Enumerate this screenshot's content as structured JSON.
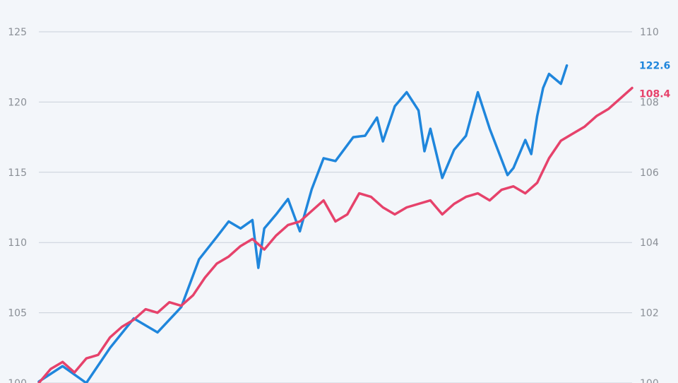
{
  "chart_data": {
    "type": "line",
    "title": "",
    "left_axis": {
      "ticks": [
        100,
        105,
        110,
        115,
        120,
        125
      ],
      "range": [
        100,
        125
      ]
    },
    "right_axis": {
      "ticks": [
        100,
        102,
        104,
        106,
        108,
        110
      ],
      "range": [
        100,
        110
      ]
    },
    "grid": true,
    "series": [
      {
        "axis": "left",
        "color": "#1f86dc",
        "end_label": "122.6",
        "x": [
          0,
          0.04,
          0.08,
          0.12,
          0.16,
          0.2,
          0.24,
          0.27,
          0.3,
          0.32,
          0.34,
          0.36,
          0.37,
          0.38,
          0.4,
          0.42,
          0.44,
          0.46,
          0.48,
          0.5,
          0.53,
          0.55,
          0.57,
          0.58,
          0.6,
          0.62,
          0.64,
          0.65,
          0.66,
          0.68,
          0.7,
          0.72,
          0.74,
          0.76,
          0.78,
          0.79,
          0.8,
          0.82,
          0.83,
          0.84,
          0.85,
          0.86,
          0.88,
          0.89
        ],
        "values": [
          100.1,
          101.2,
          100.0,
          102.5,
          104.6,
          103.6,
          105.4,
          108.8,
          110.4,
          111.5,
          111.0,
          111.6,
          108.2,
          111.0,
          112.0,
          113.1,
          110.8,
          113.8,
          116.0,
          115.8,
          117.5,
          117.6,
          118.9,
          117.2,
          119.7,
          120.7,
          119.4,
          116.5,
          118.1,
          114.6,
          116.6,
          117.6,
          120.7,
          118.1,
          115.9,
          114.8,
          115.3,
          117.3,
          116.3,
          119.0,
          121.0,
          122.0,
          121.3,
          122.6
        ]
      },
      {
        "axis": "right",
        "color": "#e6426b",
        "end_label": "108.4",
        "x": [
          0,
          0.02,
          0.04,
          0.06,
          0.08,
          0.1,
          0.12,
          0.14,
          0.16,
          0.18,
          0.2,
          0.22,
          0.24,
          0.26,
          0.28,
          0.3,
          0.32,
          0.34,
          0.36,
          0.38,
          0.4,
          0.42,
          0.44,
          0.46,
          0.48,
          0.5,
          0.52,
          0.54,
          0.56,
          0.58,
          0.6,
          0.62,
          0.64,
          0.66,
          0.68,
          0.7,
          0.72,
          0.74,
          0.76,
          0.78,
          0.8,
          0.82,
          0.84,
          0.86,
          0.88,
          0.9,
          0.92,
          0.94,
          0.96,
          0.98,
          1.0
        ],
        "values": [
          100.0,
          100.4,
          100.6,
          100.3,
          100.7,
          100.8,
          101.3,
          101.6,
          101.8,
          102.1,
          102.0,
          102.3,
          102.2,
          102.5,
          103.0,
          103.4,
          103.6,
          103.9,
          104.1,
          103.8,
          104.2,
          104.5,
          104.6,
          104.9,
          105.2,
          104.6,
          104.8,
          105.4,
          105.3,
          105.0,
          104.8,
          105.0,
          105.1,
          105.2,
          104.8,
          105.1,
          105.3,
          105.4,
          105.2,
          105.5,
          105.6,
          105.4,
          105.7,
          106.4,
          106.9,
          107.1,
          107.3,
          107.6,
          107.8,
          108.1,
          108.4
        ]
      }
    ]
  }
}
